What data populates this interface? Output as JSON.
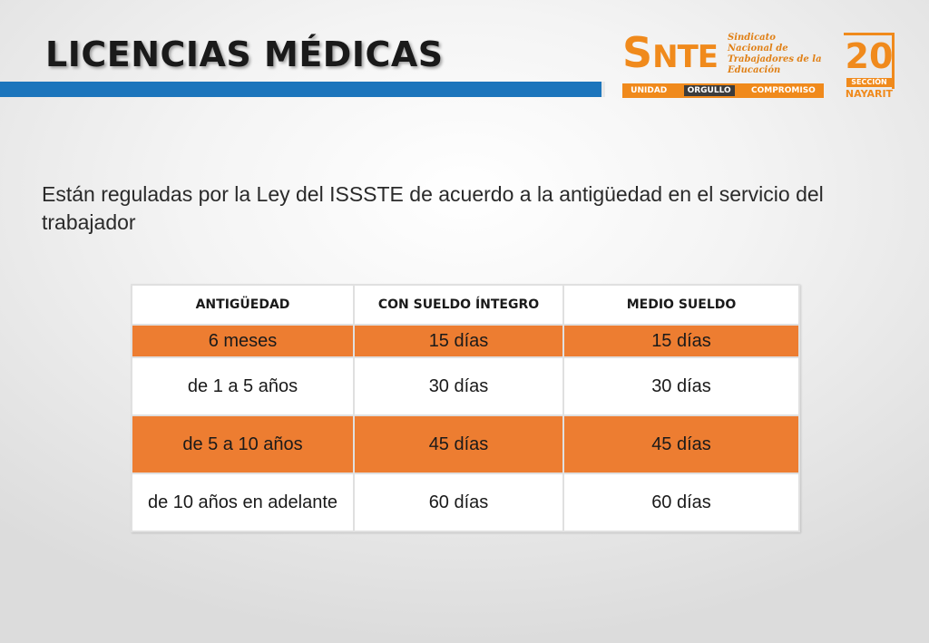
{
  "slide": {
    "title": "LICENCIAS MÉDICAS",
    "intro": "Están reguladas por la Ley del ISSSTE de acuerdo a la antigüedad en el servicio del trabajador"
  },
  "logo": {
    "snte_initial": "S",
    "snte_rest": "NTE",
    "description_lines": [
      "Sindicato",
      "Nacional de",
      "Trabajadores de la",
      "Educación"
    ],
    "motto": [
      "UNIDAD",
      "ORGULLO",
      "COMPROMISO"
    ],
    "section_number": "20",
    "section_label": "SECCIÓN",
    "section_state": "NAYARIT"
  },
  "table": {
    "headers": [
      "ANTIGÜEDAD",
      "CON SUELDO ÍNTEGRO",
      "MEDIO SUELDO"
    ],
    "rows": [
      [
        "6 meses",
        "15 días",
        "15 días"
      ],
      [
        "de 1 a 5 años",
        "30 días",
        "30 días"
      ],
      [
        "de 5 a 10 años",
        "45 días",
        "45 días"
      ],
      [
        "de 10 años en adelante",
        "60 días",
        "60 días"
      ]
    ]
  },
  "colors": {
    "title_bar": "#1c75bc",
    "row_highlight": "#ed7d31",
    "brand_orange": "#f08a1c"
  }
}
